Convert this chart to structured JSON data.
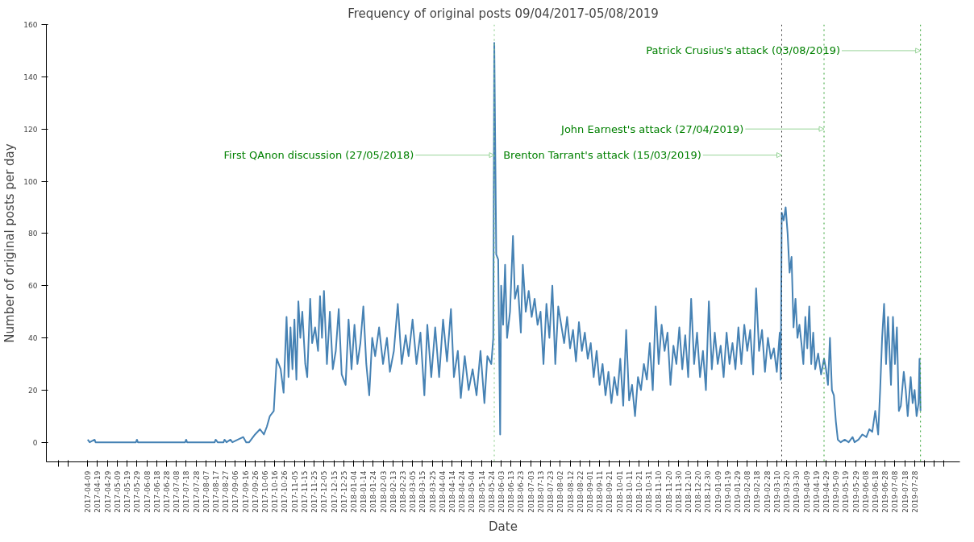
{
  "chart_data": {
    "type": "line",
    "title": "Frequency of original posts 09/04/2017-05/08/2019",
    "xlabel": "Date",
    "ylabel": "Number of original posts per day",
    "x": [
      "2017-04-09",
      "2017-04-11",
      "2017-04-16",
      "2017-04-17",
      "2017-05-28",
      "2017-05-29",
      "2017-05-30",
      "2017-07-17",
      "2017-07-18",
      "2017-07-19",
      "2017-08-16",
      "2017-08-17",
      "2017-08-19",
      "2017-08-25",
      "2017-08-26",
      "2017-08-28",
      "2017-09-01",
      "2017-09-03",
      "2017-09-14",
      "2017-09-17",
      "2017-09-20",
      "2017-09-26",
      "2017-10-01",
      "2017-10-05",
      "2017-10-08",
      "2017-10-11",
      "2017-10-15",
      "2017-10-18",
      "2017-10-22",
      "2017-10-25",
      "2017-10-28",
      "2017-10-30",
      "2017-11-01",
      "2017-11-03",
      "2017-11-05",
      "2017-11-07",
      "2017-11-09",
      "2017-11-11",
      "2017-11-13",
      "2017-11-16",
      "2017-11-18",
      "2017-11-21",
      "2017-11-23",
      "2017-11-26",
      "2017-11-29",
      "2017-12-01",
      "2017-12-03",
      "2017-12-05",
      "2017-12-08",
      "2017-12-11",
      "2017-12-14",
      "2017-12-17",
      "2017-12-20",
      "2017-12-23",
      "2017-12-27",
      "2017-12-30",
      "2018-01-02",
      "2018-01-05",
      "2018-01-08",
      "2018-01-11",
      "2018-01-14",
      "2018-01-17",
      "2018-01-20",
      "2018-01-23",
      "2018-01-26",
      "2018-01-30",
      "2018-02-03",
      "2018-02-07",
      "2018-02-10",
      "2018-02-14",
      "2018-02-18",
      "2018-02-22",
      "2018-02-26",
      "2018-03-01",
      "2018-03-05",
      "2018-03-09",
      "2018-03-13",
      "2018-03-17",
      "2018-03-20",
      "2018-03-24",
      "2018-03-28",
      "2018-04-01",
      "2018-04-05",
      "2018-04-09",
      "2018-04-13",
      "2018-04-16",
      "2018-04-20",
      "2018-04-23",
      "2018-04-27",
      "2018-05-01",
      "2018-05-05",
      "2018-05-09",
      "2018-05-13",
      "2018-05-17",
      "2018-05-20",
      "2018-05-24",
      "2018-05-26",
      "2018-05-27",
      "2018-05-29",
      "2018-05-31",
      "2018-06-02",
      "2018-06-03",
      "2018-06-05",
      "2018-06-07",
      "2018-06-09",
      "2018-06-12",
      "2018-06-15",
      "2018-06-17",
      "2018-06-20",
      "2018-06-23",
      "2018-06-25",
      "2018-06-28",
      "2018-07-01",
      "2018-07-04",
      "2018-07-07",
      "2018-07-10",
      "2018-07-13",
      "2018-07-16",
      "2018-07-19",
      "2018-07-22",
      "2018-07-25",
      "2018-07-28",
      "2018-07-31",
      "2018-08-03",
      "2018-08-06",
      "2018-08-09",
      "2018-08-12",
      "2018-08-15",
      "2018-08-18",
      "2018-08-21",
      "2018-08-24",
      "2018-08-27",
      "2018-08-30",
      "2018-09-02",
      "2018-09-05",
      "2018-09-08",
      "2018-09-11",
      "2018-09-14",
      "2018-09-17",
      "2018-09-20",
      "2018-09-23",
      "2018-09-26",
      "2018-09-29",
      "2018-10-02",
      "2018-10-05",
      "2018-10-08",
      "2018-10-11",
      "2018-10-14",
      "2018-10-17",
      "2018-10-20",
      "2018-10-23",
      "2018-10-26",
      "2018-10-29",
      "2018-11-01",
      "2018-11-04",
      "2018-11-07",
      "2018-11-10",
      "2018-11-13",
      "2018-11-16",
      "2018-11-19",
      "2018-11-22",
      "2018-11-25",
      "2018-11-28",
      "2018-12-01",
      "2018-12-04",
      "2018-12-07",
      "2018-12-10",
      "2018-12-13",
      "2018-12-16",
      "2018-12-19",
      "2018-12-22",
      "2018-12-25",
      "2018-12-28",
      "2018-12-31",
      "2019-01-03",
      "2019-01-06",
      "2019-01-09",
      "2019-01-12",
      "2019-01-15",
      "2019-01-18",
      "2019-01-21",
      "2019-01-24",
      "2019-01-27",
      "2019-01-30",
      "2019-02-02",
      "2019-02-05",
      "2019-02-08",
      "2019-02-11",
      "2019-02-14",
      "2019-02-17",
      "2019-02-20",
      "2019-02-23",
      "2019-02-26",
      "2019-03-01",
      "2019-03-04",
      "2019-03-07",
      "2019-03-10",
      "2019-03-13",
      "2019-03-14",
      "2019-03-15",
      "2019-03-17",
      "2019-03-19",
      "2019-03-21",
      "2019-03-23",
      "2019-03-25",
      "2019-03-27",
      "2019-03-29",
      "2019-03-31",
      "2019-04-02",
      "2019-04-04",
      "2019-04-06",
      "2019-04-08",
      "2019-04-10",
      "2019-04-12",
      "2019-04-14",
      "2019-04-16",
      "2019-04-18",
      "2019-04-21",
      "2019-04-24",
      "2019-04-27",
      "2019-04-29",
      "2019-05-01",
      "2019-05-03",
      "2019-05-05",
      "2019-05-07",
      "2019-05-09",
      "2019-05-11",
      "2019-05-14",
      "2019-05-18",
      "2019-05-22",
      "2019-05-26",
      "2019-05-28",
      "2019-06-01",
      "2019-06-05",
      "2019-06-09",
      "2019-06-12",
      "2019-06-15",
      "2019-06-18",
      "2019-06-21",
      "2019-06-23",
      "2019-06-25",
      "2019-06-27",
      "2019-06-29",
      "2019-07-01",
      "2019-07-04",
      "2019-07-06",
      "2019-07-08",
      "2019-07-10",
      "2019-07-12",
      "2019-07-14",
      "2019-07-17",
      "2019-07-19",
      "2019-07-21",
      "2019-07-24",
      "2019-07-26",
      "2019-07-28",
      "2019-07-30",
      "2019-08-01",
      "2019-08-02",
      "2019-08-03"
    ],
    "series": [
      {
        "color": "#4682b4",
        "values": [
          1,
          0,
          1,
          0,
          0,
          1,
          0,
          0,
          1,
          0,
          0,
          1,
          0,
          0,
          1,
          0,
          1,
          0,
          2,
          0,
          0,
          3,
          5,
          3,
          6,
          10,
          12,
          32,
          28,
          19,
          48,
          25,
          44,
          28,
          47,
          24,
          54,
          40,
          50,
          30,
          25,
          55,
          38,
          44,
          35,
          56,
          40,
          58,
          30,
          50,
          28,
          35,
          51,
          26,
          22,
          47,
          28,
          45,
          30,
          38,
          52,
          30,
          18,
          40,
          33,
          44,
          30,
          40,
          27,
          35,
          53,
          30,
          41,
          33,
          47,
          30,
          42,
          18,
          45,
          25,
          44,
          25,
          47,
          31,
          51,
          25,
          35,
          17,
          33,
          20,
          28,
          18,
          35,
          15,
          33,
          30,
          40,
          153,
          72,
          70,
          3,
          60,
          45,
          68,
          40,
          50,
          79,
          55,
          60,
          42,
          68,
          50,
          58,
          48,
          55,
          45,
          50,
          30,
          53,
          40,
          60,
          30,
          52,
          45,
          38,
          48,
          36,
          43,
          31,
          46,
          35,
          42,
          32,
          38,
          25,
          35,
          22,
          30,
          18,
          27,
          15,
          25,
          18,
          32,
          14,
          43,
          16,
          22,
          10,
          25,
          20,
          30,
          24,
          38,
          20,
          52,
          30,
          45,
          35,
          42,
          22,
          37,
          30,
          44,
          28,
          41,
          25,
          55,
          30,
          42,
          25,
          35,
          20,
          54,
          28,
          42,
          30,
          37,
          25,
          42,
          30,
          38,
          28,
          44,
          30,
          45,
          35,
          43,
          26,
          59,
          35,
          43,
          27,
          40,
          32,
          36,
          27,
          42,
          24,
          88,
          85,
          90,
          80,
          65,
          71,
          44,
          55,
          40,
          45,
          38,
          30,
          48,
          36,
          52,
          30,
          42,
          28,
          34,
          26,
          32,
          28,
          22,
          40,
          20,
          18,
          8,
          1,
          0,
          1,
          0,
          2,
          0,
          1,
          3,
          2,
          5,
          4,
          12,
          3,
          20,
          40,
          53,
          30,
          48,
          22,
          48,
          30,
          44,
          12,
          14,
          27,
          20,
          10,
          25,
          15,
          20,
          10,
          15,
          32,
          12
        ]
      }
    ],
    "xlim": [
      "2017-02-26",
      "2019-09-12"
    ],
    "xticks": [
      {
        "value": "2017-03-10",
        "label": null
      },
      {
        "value": "2017-03-20",
        "label": null
      },
      "2017-04-09",
      "2017-04-19",
      "2017-04-29",
      "2017-05-09",
      "2017-05-19",
      "2017-05-29",
      "2017-06-08",
      "2017-06-18",
      "2017-06-28",
      "2017-07-08",
      "2017-07-18",
      "2017-07-28",
      "2017-08-07",
      "2017-08-17",
      "2017-08-27",
      "2017-09-06",
      "2017-09-16",
      "2017-09-26",
      "2017-10-06",
      "2017-10-16",
      "2017-10-26",
      "2017-11-05",
      "2017-11-15",
      "2017-11-25",
      "2017-12-05",
      "2017-12-15",
      "2017-12-25",
      "2018-01-04",
      "2018-01-14",
      "2018-01-24",
      "2018-02-03",
      "2018-02-13",
      "2018-02-23",
      "2018-03-05",
      "2018-03-15",
      "2018-03-25",
      "2018-04-04",
      "2018-04-14",
      "2018-04-24",
      "2018-05-04",
      "2018-05-14",
      "2018-05-24",
      "2018-06-03",
      "2018-06-13",
      "2018-06-23",
      "2018-07-03",
      "2018-07-13",
      "2018-07-23",
      "2018-08-02",
      "2018-08-12",
      "2018-08-22",
      "2018-09-01",
      "2018-09-11",
      "2018-09-21",
      "2018-10-01",
      "2018-10-11",
      "2018-10-21",
      "2018-10-31",
      "2018-11-10",
      "2018-11-20",
      "2018-11-30",
      "2018-12-10",
      "2018-12-20",
      "2018-12-30",
      "2019-01-09",
      "2019-01-19",
      "2019-01-29",
      "2019-02-08",
      "2019-02-18",
      "2019-02-28",
      "2019-03-10",
      "2019-03-20",
      "2019-03-30",
      "2019-04-09",
      "2019-04-19",
      "2019-04-29",
      "2019-05-09",
      "2019-05-19",
      "2019-05-29",
      "2019-06-08",
      "2019-06-18",
      "2019-06-28",
      "2019-07-08",
      "2019-07-18",
      "2019-07-28",
      {
        "value": "2019-08-07",
        "label": null
      },
      {
        "value": "2019-08-17",
        "label": null
      },
      {
        "value": "2019-08-27",
        "label": null
      }
    ],
    "ylim": [
      -7.5,
      160
    ],
    "yticks": [
      0,
      20,
      40,
      60,
      80,
      100,
      120,
      140,
      160
    ],
    "grid": false,
    "marker": "none",
    "line_style": "solid",
    "ref_lines": [
      {
        "axis": "x",
        "value": "2018-05-27",
        "color": "#7fc97f",
        "line_style": "dotted"
      },
      {
        "axis": "x",
        "value": "2019-03-15",
        "color": "#333333",
        "line_style": "dotted"
      },
      {
        "axis": "x",
        "value": "2019-04-27",
        "color": "#2ca02c",
        "line_style": "dotted"
      },
      {
        "axis": "x",
        "value": "2019-08-03",
        "color": "#2ca02c",
        "line_style": "dotted"
      }
    ],
    "annotations": [
      {
        "text": "First QAnon discussion (27/05/2018)",
        "x": "2018-05-27",
        "y": 110
      },
      {
        "text": "Brenton Tarrant's attack (15/03/2019)",
        "x": "2019-03-15",
        "y": 110
      },
      {
        "text": "John Earnest's attack (27/04/2019)",
        "x": "2019-04-27",
        "y": 120
      },
      {
        "text": "Patrick Crusius's attack (03/08/2019)",
        "x": "2019-08-03",
        "y": 150
      }
    ]
  }
}
